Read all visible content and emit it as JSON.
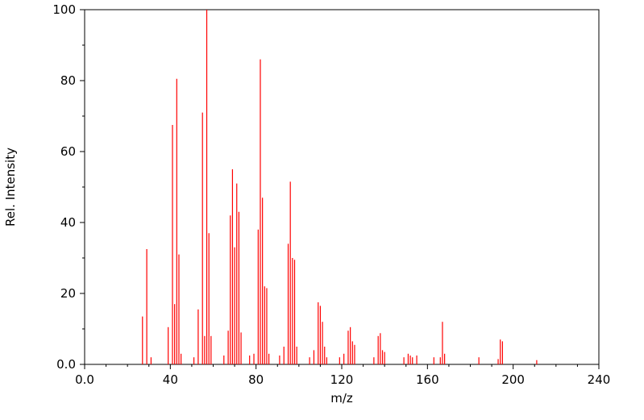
{
  "page": {
    "background": "#ffffff"
  },
  "chart_data": {
    "type": "bar",
    "subtype": "mass-spectrum-stick-plot",
    "title": "",
    "xlabel": "m/z",
    "ylabel": "Rel. Intensity",
    "xlim": [
      0,
      240
    ],
    "ylim": [
      0,
      100
    ],
    "grid": false,
    "legend": "none",
    "frame": "full-box",
    "stick_color": "#ff0000",
    "axis_color": "#000000",
    "x_ticks": [
      {
        "value": 0,
        "label": "0.0"
      },
      {
        "value": 40,
        "label": "40"
      },
      {
        "value": 80,
        "label": "80"
      },
      {
        "value": 120,
        "label": "120"
      },
      {
        "value": 160,
        "label": "160"
      },
      {
        "value": 200,
        "label": "200"
      },
      {
        "value": 240,
        "label": "240"
      }
    ],
    "y_ticks": [
      {
        "value": 0,
        "label": "0.0"
      },
      {
        "value": 20,
        "label": "20"
      },
      {
        "value": 40,
        "label": "40"
      },
      {
        "value": 60,
        "label": "60"
      },
      {
        "value": 80,
        "label": "80"
      },
      {
        "value": 100,
        "label": "100"
      }
    ],
    "x_minor_ticks": [
      10,
      20,
      30,
      50,
      60,
      70,
      90,
      100,
      110,
      130,
      140,
      150,
      170,
      180,
      190,
      210,
      220,
      230
    ],
    "y_minor_ticks": [
      10,
      30,
      50,
      70,
      90
    ],
    "peaks_format": [
      "mz",
      "rel_intensity"
    ],
    "peaks": [
      [
        27,
        13.5
      ],
      [
        29,
        32.5
      ],
      [
        31,
        2.0
      ],
      [
        39,
        10.5
      ],
      [
        41,
        67.5
      ],
      [
        42,
        17.0
      ],
      [
        43,
        80.5
      ],
      [
        44,
        31.0
      ],
      [
        45,
        3.0
      ],
      [
        51,
        2.0
      ],
      [
        53,
        15.5
      ],
      [
        55,
        71.0
      ],
      [
        56,
        8.0
      ],
      [
        57,
        100.0
      ],
      [
        58,
        37.0
      ],
      [
        59,
        8.0
      ],
      [
        65,
        2.5
      ],
      [
        67,
        9.5
      ],
      [
        68,
        42.0
      ],
      [
        69,
        55.0
      ],
      [
        70,
        33.0
      ],
      [
        71,
        51.0
      ],
      [
        72,
        43.0
      ],
      [
        73,
        9.0
      ],
      [
        77,
        2.5
      ],
      [
        79,
        3.0
      ],
      [
        81,
        38.0
      ],
      [
        82,
        86.0
      ],
      [
        83,
        47.0
      ],
      [
        84,
        22.0
      ],
      [
        85,
        21.5
      ],
      [
        86,
        3.0
      ],
      [
        91,
        2.5
      ],
      [
        93,
        5.0
      ],
      [
        95,
        34.0
      ],
      [
        96,
        51.5
      ],
      [
        97,
        30.0
      ],
      [
        98,
        29.5
      ],
      [
        99,
        5.0
      ],
      [
        105,
        2.0
      ],
      [
        107,
        4.0
      ],
      [
        109,
        17.5
      ],
      [
        110,
        16.5
      ],
      [
        111,
        12.0
      ],
      [
        112,
        5.0
      ],
      [
        113,
        2.0
      ],
      [
        119,
        2.0
      ],
      [
        121,
        3.0
      ],
      [
        123,
        9.5
      ],
      [
        124,
        10.5
      ],
      [
        125,
        6.5
      ],
      [
        126,
        5.5
      ],
      [
        135,
        2.0
      ],
      [
        137,
        8.0
      ],
      [
        138,
        8.8
      ],
      [
        139,
        4.0
      ],
      [
        140,
        3.5
      ],
      [
        149,
        2.0
      ],
      [
        151,
        3.0
      ],
      [
        152,
        2.5
      ],
      [
        153,
        2.0
      ],
      [
        155,
        2.5
      ],
      [
        163,
        2.0
      ],
      [
        166,
        2.0
      ],
      [
        167,
        12.0
      ],
      [
        168,
        3.0
      ],
      [
        184,
        2.0
      ],
      [
        193,
        1.5
      ],
      [
        194,
        7.0
      ],
      [
        195,
        6.5
      ],
      [
        211,
        1.2
      ]
    ]
  }
}
